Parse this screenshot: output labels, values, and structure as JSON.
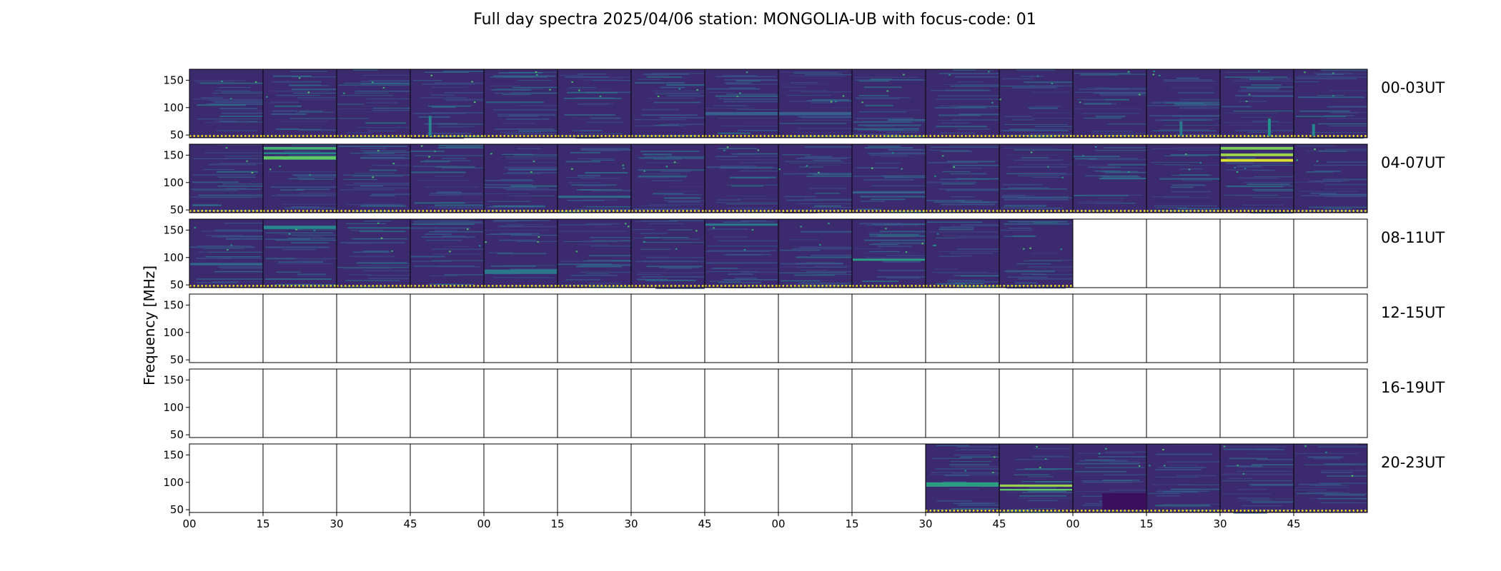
{
  "figure": {
    "title": "Full day spectra 2025/04/06 station: MONGOLIA-UB with focus-code: 01"
  },
  "chart_data": {
    "type": "heatmap",
    "title": "Full day spectra 2025/04/06 station: MONGOLIA-UB with focus-code: 01",
    "ylabel": "Frequency [MHz]",
    "xlabel": "",
    "ylim": [
      45,
      170
    ],
    "yticks": [
      50,
      100,
      150
    ],
    "xticks": [
      "00",
      "15",
      "30",
      "45",
      "00",
      "15",
      "30",
      "45",
      "00",
      "15",
      "30",
      "45",
      "00",
      "15",
      "30",
      "45"
    ],
    "panels_per_row": 16,
    "panel_minutes": 15,
    "rows": [
      {
        "label": "00-03UT",
        "filled": [
          1,
          1,
          1,
          1,
          1,
          1,
          1,
          1,
          1,
          1,
          1,
          1,
          1,
          1,
          1,
          1
        ],
        "features": [
          {
            "panel": 3,
            "f_low": 48,
            "f_high": 85,
            "kind": "vertical-burst",
            "intensity": 0.45
          },
          {
            "panel": 13,
            "f_low": 48,
            "f_high": 75,
            "kind": "vertical-burst",
            "intensity": 0.4
          },
          {
            "panel": 14,
            "f_low": 48,
            "f_high": 80,
            "kind": "vertical-burst",
            "intensity": 0.5
          },
          {
            "panel": 15,
            "f_low": 48,
            "f_high": 70,
            "kind": "vertical-burst",
            "intensity": 0.45
          },
          {
            "panel": 7,
            "f_low": 86,
            "f_high": 92,
            "kind": "band",
            "intensity": 0.3
          },
          {
            "panel": 8,
            "f_low": 86,
            "f_high": 92,
            "kind": "band",
            "intensity": 0.3
          }
        ]
      },
      {
        "label": "04-07UT",
        "filled": [
          1,
          1,
          1,
          1,
          1,
          1,
          1,
          1,
          1,
          1,
          1,
          1,
          1,
          1,
          1,
          1
        ],
        "features": [
          {
            "panel": 1,
            "f_low": 160,
            "f_high": 165,
            "kind": "band",
            "intensity": 0.65
          },
          {
            "panel": 1,
            "f_low": 142,
            "f_high": 148,
            "kind": "band",
            "intensity": 0.75
          },
          {
            "panel": 1,
            "f_low": 152,
            "f_high": 155,
            "kind": "band",
            "intensity": 0.5
          },
          {
            "panel": 14,
            "f_low": 160,
            "f_high": 165,
            "kind": "band",
            "intensity": 0.8
          },
          {
            "panel": 14,
            "f_low": 148,
            "f_high": 153,
            "kind": "band",
            "intensity": 0.85
          },
          {
            "panel": 14,
            "f_low": 138,
            "f_high": 143,
            "kind": "band",
            "intensity": 0.95
          },
          {
            "panel": 5,
            "f_low": 72,
            "f_high": 76,
            "kind": "band",
            "intensity": 0.35
          },
          {
            "panel": 9,
            "f_low": 80,
            "f_high": 84,
            "kind": "band",
            "intensity": 0.3
          }
        ]
      },
      {
        "label": "08-11UT",
        "filled": [
          1,
          1,
          1,
          1,
          1,
          1,
          1,
          1,
          1,
          1,
          1,
          1,
          0,
          0,
          0,
          0
        ],
        "features": [
          {
            "panel": 1,
            "f_low": 152,
            "f_high": 158,
            "kind": "band",
            "intensity": 0.45
          },
          {
            "panel": 4,
            "f_low": 70,
            "f_high": 78,
            "kind": "band",
            "intensity": 0.4
          },
          {
            "panel": 7,
            "f_low": 158,
            "f_high": 162,
            "kind": "band",
            "intensity": 0.4
          },
          {
            "panel": 9,
            "f_low": 94,
            "f_high": 98,
            "kind": "band",
            "intensity": 0.55
          },
          {
            "panel": 0,
            "f_low": 86,
            "f_high": 90,
            "kind": "band",
            "intensity": 0.35
          }
        ]
      },
      {
        "label": "12-15UT",
        "filled": [
          0,
          0,
          0,
          0,
          0,
          0,
          0,
          0,
          0,
          0,
          0,
          0,
          0,
          0,
          0,
          0
        ],
        "features": []
      },
      {
        "label": "16-19UT",
        "filled": [
          0,
          0,
          0,
          0,
          0,
          0,
          0,
          0,
          0,
          0,
          0,
          0,
          0,
          0,
          0,
          0
        ],
        "features": []
      },
      {
        "label": "20-23UT",
        "filled": [
          0,
          0,
          0,
          0,
          0,
          0,
          0,
          0,
          0,
          0,
          1,
          1,
          1,
          1,
          1,
          1
        ],
        "features": [
          {
            "panel": 10,
            "f_low": 92,
            "f_high": 100,
            "kind": "band",
            "intensity": 0.55
          },
          {
            "panel": 11,
            "f_low": 92,
            "f_high": 96,
            "kind": "band",
            "intensity": 0.85
          },
          {
            "panel": 11,
            "f_low": 85,
            "f_high": 88,
            "kind": "band",
            "intensity": 0.75
          },
          {
            "panel": 12,
            "f_low": 50,
            "f_high": 80,
            "kind": "dark-block",
            "intensity": 0.0
          }
        ]
      }
    ],
    "colormap": [
      "#440154",
      "#3b528b",
      "#21918c",
      "#5ec962",
      "#fde725"
    ],
    "base_color": "#3b2a6e"
  }
}
